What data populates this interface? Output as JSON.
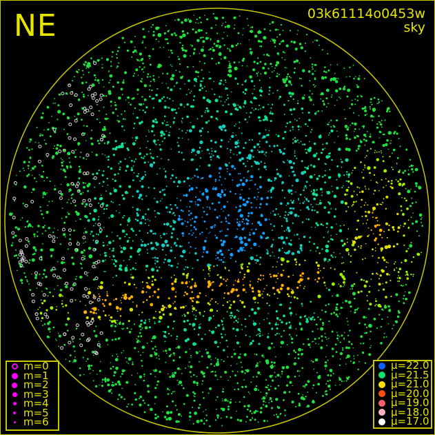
{
  "header": {
    "direction": "NE",
    "filename": "03k61114o0453w",
    "subtitle": "sky"
  },
  "colors": {
    "frame": "#c8c800",
    "text": "#e6e600",
    "magnitude_symbol": "#ff00ff"
  },
  "magnitude_legend": [
    {
      "label": "m=0",
      "style": "hollow"
    },
    {
      "label": "m=1",
      "style": "filled"
    },
    {
      "label": "m=2",
      "style": "filled"
    },
    {
      "label": "m=3",
      "style": "filled"
    },
    {
      "label": "m=4",
      "style": "filled"
    },
    {
      "label": "m=5",
      "style": "filled"
    },
    {
      "label": "m=6",
      "style": "filled"
    }
  ],
  "brightness_legend": [
    {
      "label": "μ=22.0",
      "color": "#1060ff"
    },
    {
      "label": "μ=21.5",
      "color": "#10e070"
    },
    {
      "label": "μ=21.0",
      "color": "#ffe000"
    },
    {
      "label": "μ=20.0",
      "color": "#ff5010"
    },
    {
      "label": "μ=19.0",
      "color": "#ff6070"
    },
    {
      "label": "μ=18.0",
      "color": "#ffb0c0"
    },
    {
      "label": "μ=17.0",
      "color": "#ffffff"
    }
  ]
}
